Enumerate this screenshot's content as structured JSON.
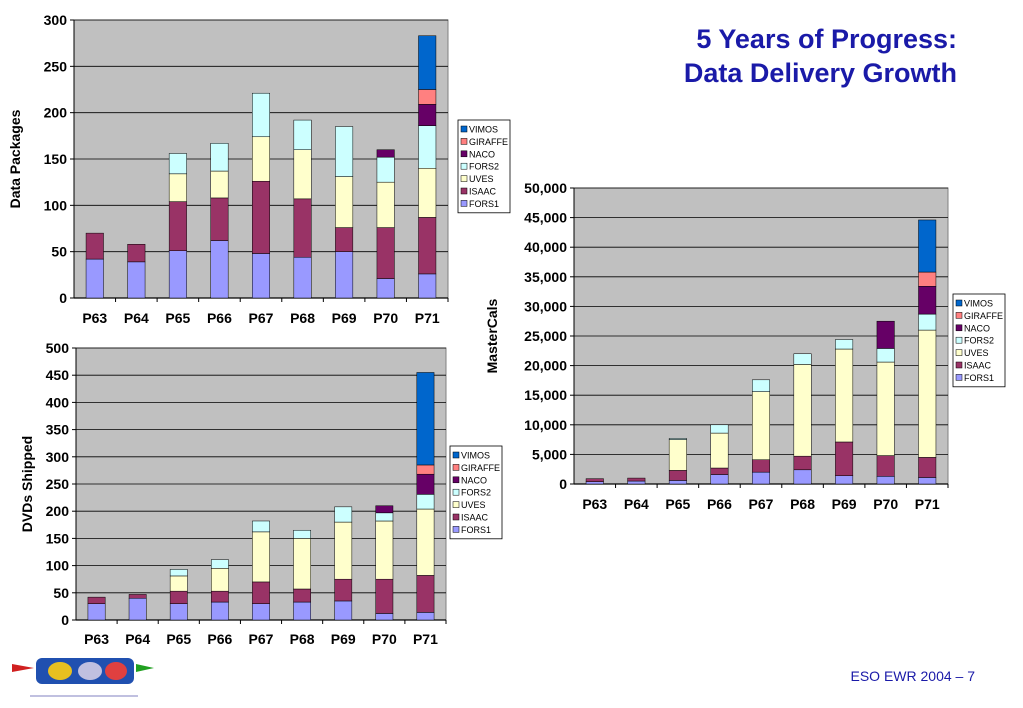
{
  "title": {
    "line1": "5 Years of Progress:",
    "line2": "Data Delivery Growth"
  },
  "footer": {
    "text": "ESO EWR 2004  –  7"
  },
  "colors": {
    "FORS1": "#9999ff",
    "ISAAC": "#993366",
    "UVES": "#ffffcc",
    "FORS2": "#ccffff",
    "NACO": "#660066",
    "GIRAFFE": "#ff8080",
    "VIMOS": "#0066cc",
    "plot_bg": "#c0c0c0"
  },
  "chart_data": [
    {
      "type": "bar",
      "stacked": true,
      "ylabel": "Data Packages",
      "categories": [
        "P63",
        "P64",
        "P65",
        "P66",
        "P67",
        "P68",
        "P69",
        "P70",
        "P71"
      ],
      "ylim": [
        0,
        300
      ],
      "yticks": [
        "0",
        "50",
        "100",
        "150",
        "200",
        "250",
        "300"
      ],
      "legend": [
        "VIMOS",
        "GIRAFFE",
        "NACO",
        "FORS2",
        "UVES",
        "ISAAC",
        "FORS1"
      ],
      "series": [
        {
          "name": "FORS1",
          "values": [
            42,
            39,
            51,
            62,
            48,
            44,
            50,
            21,
            26
          ]
        },
        {
          "name": "ISAAC",
          "values": [
            28,
            19,
            53,
            46,
            78,
            63,
            26,
            55,
            61
          ]
        },
        {
          "name": "UVES",
          "values": [
            0,
            0,
            30,
            29,
            48,
            53,
            55,
            49,
            53
          ]
        },
        {
          "name": "FORS2",
          "values": [
            0,
            0,
            22,
            30,
            47,
            32,
            54,
            27,
            46
          ]
        },
        {
          "name": "NACO",
          "values": [
            0,
            0,
            0,
            0,
            0,
            0,
            0,
            8,
            23
          ]
        },
        {
          "name": "GIRAFFE",
          "values": [
            0,
            0,
            0,
            0,
            0,
            0,
            0,
            0,
            16
          ]
        },
        {
          "name": "VIMOS",
          "values": [
            0,
            0,
            0,
            0,
            0,
            0,
            0,
            0,
            58
          ]
        }
      ]
    },
    {
      "type": "bar",
      "stacked": true,
      "ylabel": "DVDs Shipped",
      "categories": [
        "P63",
        "P64",
        "P65",
        "P66",
        "P67",
        "P68",
        "P69",
        "P70",
        "P71"
      ],
      "ylim": [
        0,
        500
      ],
      "yticks": [
        "0",
        "50",
        "100",
        "150",
        "200",
        "250",
        "300",
        "350",
        "400",
        "450",
        "500"
      ],
      "legend": [
        "VIMOS",
        "GIRAFFE",
        "NACO",
        "FORS2",
        "UVES",
        "ISAAC",
        "FORS1"
      ],
      "series": [
        {
          "name": "FORS1",
          "values": [
            30,
            40,
            30,
            33,
            30,
            33,
            35,
            12,
            14
          ]
        },
        {
          "name": "ISAAC",
          "values": [
            12,
            7,
            23,
            20,
            40,
            24,
            40,
            63,
            68
          ]
        },
        {
          "name": "UVES",
          "values": [
            0,
            0,
            28,
            42,
            92,
            93,
            105,
            107,
            122
          ]
        },
        {
          "name": "FORS2",
          "values": [
            0,
            0,
            12,
            16,
            20,
            15,
            28,
            15,
            27
          ]
        },
        {
          "name": "NACO",
          "values": [
            0,
            0,
            0,
            0,
            0,
            0,
            0,
            13,
            37
          ]
        },
        {
          "name": "GIRAFFE",
          "values": [
            0,
            0,
            0,
            0,
            0,
            0,
            0,
            0,
            17
          ]
        },
        {
          "name": "VIMOS",
          "values": [
            0,
            0,
            0,
            0,
            0,
            0,
            0,
            0,
            170
          ]
        }
      ]
    },
    {
      "type": "bar",
      "stacked": true,
      "ylabel": "MasterCals",
      "categories": [
        "P63",
        "P64",
        "P65",
        "P66",
        "P67",
        "P68",
        "P69",
        "P70",
        "P71"
      ],
      "ylim": [
        0,
        50000
      ],
      "yticks": [
        "0",
        "5,000",
        "10,000",
        "15,000",
        "20,000",
        "25,000",
        "30,000",
        "35,000",
        "40,000",
        "45,000",
        "50,000"
      ],
      "legend": [
        "VIMOS",
        "GIRAFFE",
        "NACO",
        "FORS2",
        "UVES",
        "ISAAC",
        "FORS1"
      ],
      "series": [
        {
          "name": "FORS1",
          "values": [
            400,
            500,
            600,
            1600,
            2000,
            2400,
            1400,
            1300,
            1100
          ]
        },
        {
          "name": "ISAAC",
          "values": [
            500,
            500,
            1700,
            1100,
            2100,
            2300,
            5700,
            3500,
            3400
          ]
        },
        {
          "name": "UVES",
          "values": [
            0,
            0,
            5200,
            5900,
            11500,
            15500,
            15700,
            15800,
            21500
          ]
        },
        {
          "name": "FORS2",
          "values": [
            0,
            0,
            200,
            1400,
            2000,
            1800,
            1600,
            2300,
            2700
          ]
        },
        {
          "name": "NACO",
          "values": [
            0,
            0,
            0,
            0,
            0,
            0,
            0,
            4600,
            4700
          ]
        },
        {
          "name": "GIRAFFE",
          "values": [
            0,
            0,
            0,
            0,
            0,
            0,
            0,
            0,
            2400
          ]
        },
        {
          "name": "VIMOS",
          "values": [
            0,
            0,
            0,
            0,
            0,
            0,
            0,
            0,
            8800
          ]
        }
      ]
    }
  ]
}
